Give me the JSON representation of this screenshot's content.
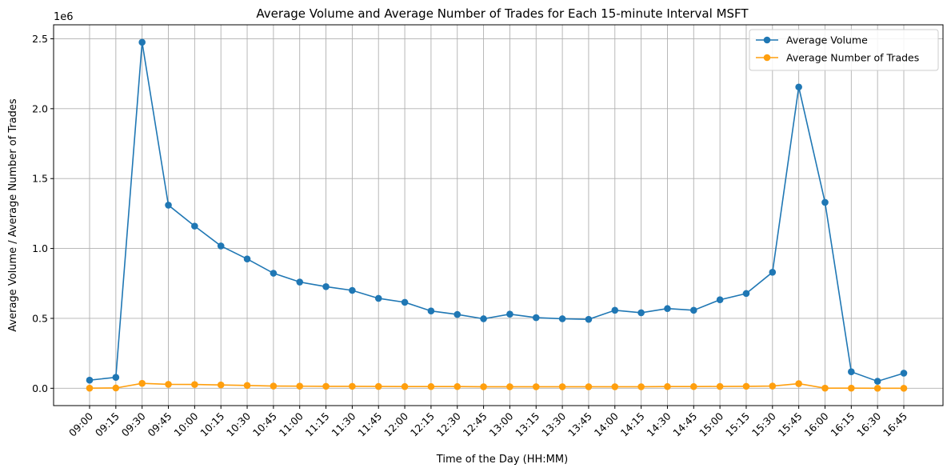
{
  "chart_data": {
    "type": "line",
    "title": "Average Volume and Average Number of Trades for Each 15-minute Interval MSFT",
    "xlabel": "Time of the Day (HH:MM)",
    "ylabel": "Average Volume / Average Number of Trades",
    "y_offset_label": "1e6",
    "y_scale_factor": 1000000,
    "ylim": [
      -0.124,
      2.6
    ],
    "yticks": [
      0.0,
      0.5,
      1.0,
      1.5,
      2.0,
      2.5
    ],
    "ytick_labels": [
      "0.0",
      "0.5",
      "1.0",
      "1.5",
      "2.0",
      "2.5"
    ],
    "grid": true,
    "legend_position": "top-right",
    "categories": [
      "09:00",
      "09:15",
      "09:30",
      "09:45",
      "10:00",
      "10:15",
      "10:30",
      "10:45",
      "11:00",
      "11:15",
      "11:30",
      "11:45",
      "12:00",
      "12:15",
      "12:30",
      "12:45",
      "13:00",
      "13:15",
      "13:30",
      "13:45",
      "14:00",
      "14:15",
      "14:30",
      "14:45",
      "15:00",
      "15:15",
      "15:30",
      "15:45",
      "16:00",
      "16:15",
      "16:30",
      "16:45"
    ],
    "series": [
      {
        "name": "Average Volume",
        "color": "#1f77b4",
        "values": [
          58000,
          78000,
          2475000,
          1310000,
          1160000,
          1018000,
          925000,
          823000,
          760000,
          727000,
          700000,
          643000,
          615000,
          553000,
          528000,
          497000,
          530000,
          505000,
          497000,
          493000,
          558000,
          540000,
          570000,
          558000,
          633000,
          678000,
          830000,
          2155000,
          1330000,
          118000,
          50000,
          108000
        ]
      },
      {
        "name": "Average Number of Trades",
        "color": "#ff9f0e",
        "values": [
          1000,
          2000,
          35000,
          28000,
          27000,
          24000,
          20000,
          16000,
          15000,
          14000,
          14000,
          13000,
          12000,
          12000,
          12000,
          11000,
          11000,
          11000,
          11000,
          11000,
          11000,
          11000,
          12000,
          12000,
          13000,
          14000,
          16000,
          33000,
          1000,
          1000,
          0,
          0
        ]
      }
    ]
  }
}
